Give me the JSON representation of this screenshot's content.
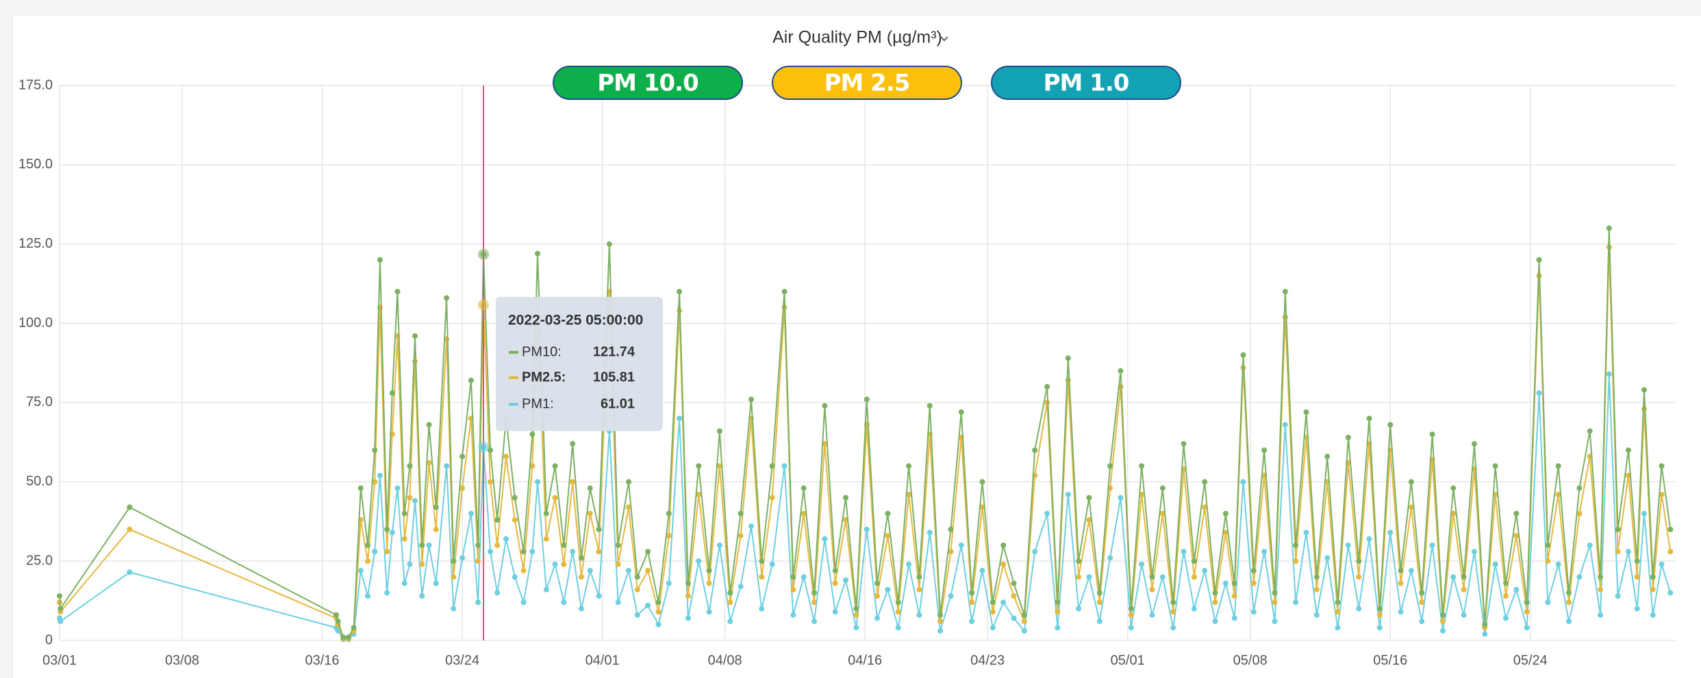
{
  "chart_data": {
    "type": "line",
    "title": "Air Quality PM (µg/m³)",
    "x": [
      0,
      0.05,
      4,
      15.8,
      15.9,
      16.2,
      16.5,
      16.8,
      17.2,
      17.6,
      18.0,
      18.3,
      18.7,
      19.0,
      19.3,
      19.7,
      20.0,
      20.3,
      20.7,
      21.1,
      21.5,
      22.1,
      22.5,
      23.0,
      23.5,
      23.9,
      24.21,
      24.6,
      25.0,
      25.5,
      26.0,
      26.5,
      27.0,
      27.3,
      27.8,
      28.3,
      28.8,
      29.3,
      29.8,
      30.3,
      30.8,
      31.4,
      31.9,
      32.5,
      33.0,
      33.6,
      34.2,
      34.8,
      35.4,
      35.9,
      36.5,
      37.1,
      37.7,
      38.3,
      38.9,
      39.5,
      40.1,
      40.7,
      41.4,
      41.9,
      42.5,
      43.1,
      43.7,
      44.3,
      44.9,
      45.5,
      46.1,
      46.7,
      47.3,
      47.9,
      48.5,
      49.1,
      49.7,
      50.3,
      50.9,
      51.5,
      52.1,
      52.7,
      53.3,
      53.9,
      54.5,
      55.1,
      55.7,
      56.4,
      57.0,
      57.6,
      58.2,
      58.8,
      59.4,
      60.0,
      60.6,
      61.2,
      61.8,
      62.4,
      63.0,
      63.6,
      64.2,
      64.8,
      65.4,
      66.0,
      66.6,
      67.1,
      67.6,
      68.2,
      68.8,
      69.4,
      70.0,
      70.6,
      71.2,
      71.8,
      72.4,
      73.0,
      73.6,
      74.2,
      74.8,
      75.4,
      76.0,
      76.6,
      77.2,
      77.8,
      78.4,
      79.0,
      79.6,
      80.2,
      80.8,
      81.4,
      82.0,
      82.6,
      83.2,
      83.8,
      84.5,
      85.0,
      85.6,
      86.2,
      86.8,
      87.4,
      88.0,
      88.5,
      89.0,
      89.6,
      90.1,
      90.5,
      91.0,
      91.5,
      92.0
    ],
    "series": [
      {
        "name": "PM 10.0",
        "color": "#7cb063",
        "button_color": "#0eae4a",
        "values": [
          14,
          10,
          42,
          8,
          6,
          1,
          1,
          4,
          48,
          30,
          60,
          120,
          35,
          78,
          110,
          40,
          55,
          96,
          30,
          68,
          42,
          108,
          25,
          58,
          82,
          30,
          121.74,
          60,
          38,
          70,
          45,
          28,
          65,
          122,
          40,
          55,
          30,
          62,
          26,
          48,
          35,
          125,
          30,
          50,
          20,
          28,
          12,
          40,
          110,
          18,
          55,
          22,
          66,
          15,
          40,
          76,
          25,
          55,
          110,
          20,
          48,
          15,
          74,
          22,
          45,
          10,
          76,
          18,
          40,
          12,
          55,
          20,
          74,
          8,
          35,
          72,
          15,
          50,
          12,
          30,
          18,
          8,
          60,
          80,
          12,
          89,
          25,
          45,
          15,
          55,
          85,
          10,
          55,
          20,
          48,
          12,
          62,
          25,
          50,
          15,
          40,
          18,
          90,
          22,
          60,
          15,
          110,
          30,
          72,
          20,
          58,
          12,
          64,
          25,
          70,
          10,
          68,
          22,
          50,
          15,
          65,
          8,
          48,
          20,
          62,
          5,
          55,
          18,
          40,
          12,
          120,
          30,
          55,
          15,
          48,
          66,
          20,
          130,
          35,
          60,
          25,
          79,
          20,
          55,
          35
        ]
      },
      {
        "name": "PM 2.5",
        "color": "#e5b83f",
        "button_color": "#fcbf0b",
        "values": [
          12,
          9,
          35,
          7,
          5,
          0.5,
          0.5,
          3,
          38,
          25,
          50,
          105,
          28,
          65,
          96,
          32,
          45,
          88,
          24,
          56,
          35,
          95,
          20,
          48,
          70,
          25,
          105.81,
          50,
          30,
          58,
          38,
          22,
          55,
          100,
          32,
          45,
          24,
          50,
          20,
          40,
          28,
          110,
          24,
          42,
          16,
          22,
          9,
          33,
          104,
          14,
          46,
          18,
          55,
          12,
          33,
          70,
          20,
          45,
          105,
          16,
          40,
          12,
          62,
          18,
          38,
          8,
          68,
          14,
          33,
          9,
          46,
          16,
          65,
          6,
          28,
          64,
          12,
          42,
          9,
          24,
          14,
          6,
          52,
          75,
          9,
          82,
          20,
          38,
          12,
          48,
          80,
          8,
          46,
          16,
          40,
          9,
          54,
          20,
          42,
          12,
          34,
          14,
          86,
          18,
          52,
          12,
          102,
          25,
          64,
          16,
          50,
          9,
          56,
          20,
          62,
          8,
          60,
          18,
          42,
          12,
          57,
          6,
          40,
          16,
          54,
          4,
          46,
          14,
          33,
          9,
          115,
          25,
          46,
          12,
          40,
          58,
          16,
          124,
          28,
          52,
          20,
          73,
          16,
          46,
          28
        ]
      },
      {
        "name": "PM 1.0",
        "color": "#6dcfe0",
        "button_color": "#12a2b3",
        "values": [
          7,
          6,
          21.5,
          4,
          3,
          0.3,
          0.3,
          2,
          22,
          14,
          28,
          52,
          15,
          34,
          48,
          18,
          24,
          44,
          14,
          30,
          18,
          55,
          10,
          26,
          40,
          12,
          61.01,
          28,
          15,
          32,
          20,
          12,
          28,
          50,
          16,
          24,
          12,
          28,
          10,
          22,
          14,
          66,
          12,
          22,
          8,
          11,
          5,
          18,
          70,
          7,
          25,
          9,
          30,
          6,
          17,
          36,
          10,
          24,
          55,
          8,
          20,
          6,
          32,
          9,
          19,
          4,
          35,
          7,
          16,
          4,
          24,
          8,
          34,
          3,
          14,
          30,
          6,
          22,
          4,
          12,
          7,
          3,
          28,
          40,
          4,
          46,
          10,
          20,
          6,
          26,
          45,
          4,
          24,
          8,
          20,
          4,
          28,
          10,
          22,
          6,
          18,
          7,
          50,
          9,
          28,
          6,
          68,
          12,
          34,
          8,
          26,
          4,
          30,
          10,
          32,
          4,
          34,
          9,
          22,
          6,
          30,
          3,
          20,
          8,
          28,
          2,
          24,
          7,
          16,
          4,
          78,
          12,
          24,
          6,
          20,
          30,
          8,
          84,
          14,
          28,
          10,
          40,
          8,
          24,
          15
        ]
      }
    ],
    "xlim": [
      0,
      92.3
    ],
    "xticks": [
      {
        "value": 0,
        "label": "03/01"
      },
      {
        "value": 7,
        "label": "03/08"
      },
      {
        "value": 15,
        "label": "03/16"
      },
      {
        "value": 23,
        "label": "03/24"
      },
      {
        "value": 31,
        "label": "04/01"
      },
      {
        "value": 38,
        "label": "04/08"
      },
      {
        "value": 46,
        "label": "04/16"
      },
      {
        "value": 53,
        "label": "04/23"
      },
      {
        "value": 61,
        "label": "05/01"
      },
      {
        "value": 68,
        "label": "05/08"
      },
      {
        "value": 76,
        "label": "05/16"
      },
      {
        "value": 84,
        "label": "05/24"
      }
    ],
    "ylim": [
      0,
      175
    ],
    "yticks": [
      0,
      {
        "value": 25,
        "label": "25.0"
      },
      {
        "value": 50,
        "label": "50.0"
      },
      {
        "value": 75,
        "label": "75.0"
      },
      {
        "value": 100,
        "label": "100.0"
      },
      {
        "value": 125,
        "label": "125.0"
      },
      {
        "value": 150,
        "label": "150.0"
      },
      {
        "value": 175,
        "label": "175.0"
      }
    ],
    "grid": true,
    "tooltip": {
      "title": "2022-03-25 05:00:00",
      "labels": [
        "PM10:",
        "PM2.5:",
        "PM1:"
      ],
      "cursor_color": "#d4577a"
    }
  }
}
